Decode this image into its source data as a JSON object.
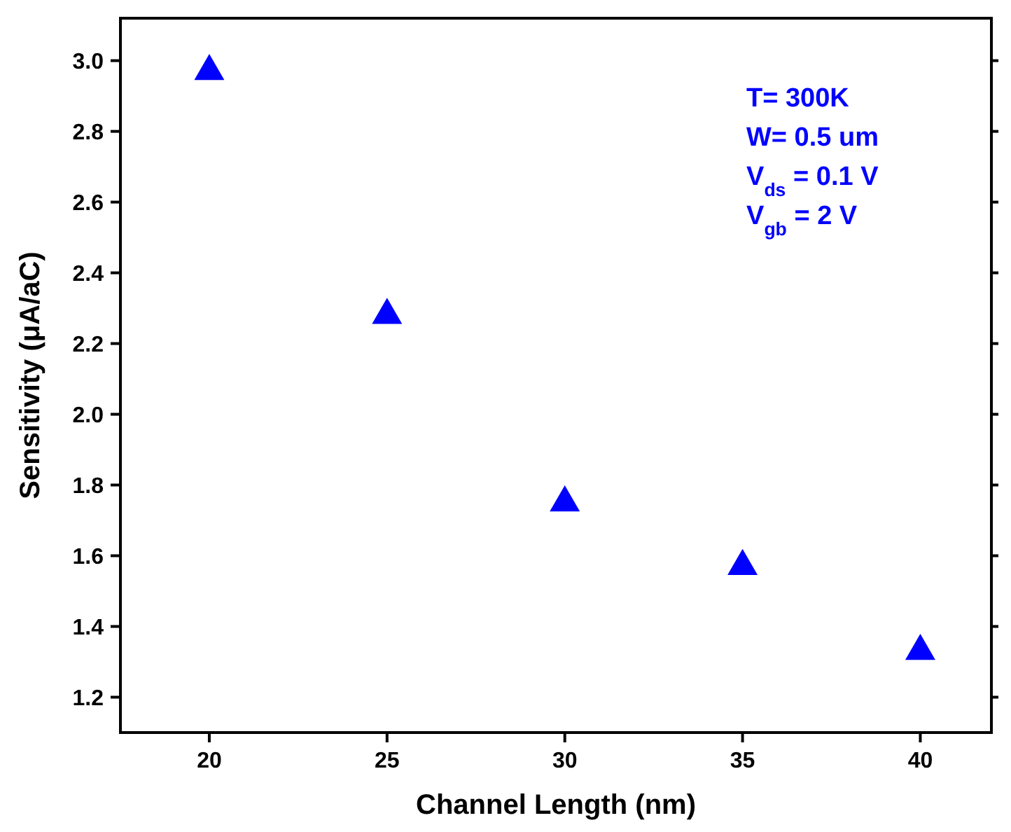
{
  "chart_data": {
    "type": "scatter",
    "xlabel": "Channel Length (nm)",
    "ylabel": "Sensitivity (μA/aC)",
    "x": [
      20,
      25,
      30,
      35,
      40
    ],
    "series": [
      {
        "color": "#0000ff",
        "values": [
          2.97,
          2.28,
          1.75,
          1.57,
          1.33
        ]
      }
    ],
    "marker": "triangle",
    "xlim": [
      17.5,
      42
    ],
    "xticks": [
      20,
      25,
      30,
      35,
      40
    ],
    "ylim": [
      1.1,
      3.12
    ],
    "yticks": [
      1.2,
      1.4,
      1.6,
      1.8,
      {
        "value": 2,
        "label": "2.0"
      },
      2.2,
      2.4,
      2.6,
      2.8,
      {
        "value": 3,
        "label": "3.0"
      }
    ],
    "grid": false,
    "annotations": [
      "T= 300K",
      "W= 0.5 um",
      "V$_{ds}$ = 0.1 V",
      "V$_{gb}$ = 2 V"
    ]
  }
}
